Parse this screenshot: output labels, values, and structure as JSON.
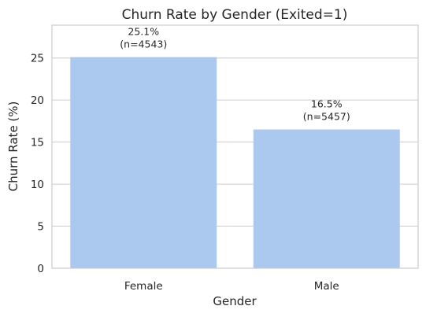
{
  "chart_data": {
    "type": "bar",
    "title": "Churn Rate by Gender (Exited=1)",
    "xlabel": "Gender",
    "ylabel": "Churn Rate (%)",
    "categories": [
      "Female",
      "Male"
    ],
    "values": [
      25.1,
      16.5
    ],
    "value_labels": [
      "25.1%",
      "16.5%"
    ],
    "count_labels": [
      "(n=4543)",
      "(n=5457)"
    ],
    "ylim": [
      0,
      28.9
    ],
    "yticks": [
      0,
      5,
      10,
      15,
      20,
      25
    ],
    "grid": true,
    "bar_color": "#abc9ee"
  }
}
